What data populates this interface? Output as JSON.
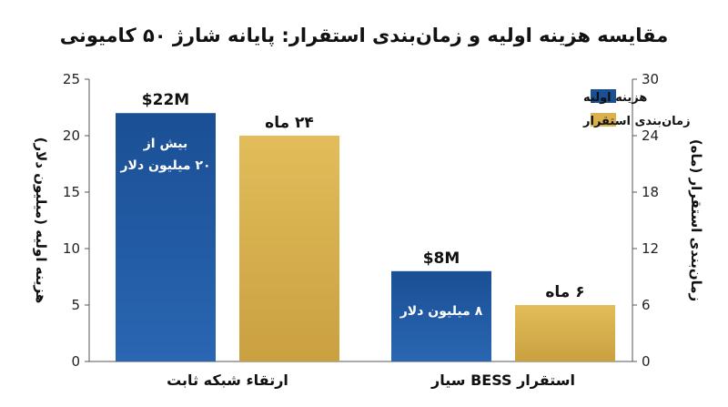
{
  "chart_data": {
    "type": "bar",
    "title": "مقایسه هزینه اولیه و زمان‌بندی استقرار: پایانه شارژ ۵۰ کامیونی",
    "categories": [
      "ارتقاء شبکه ثابت",
      "استقرار BESS سیار"
    ],
    "series": [
      {
        "name": "هزینه اولیه",
        "axis": "left",
        "values": [
          22,
          8
        ],
        "value_labels": [
          "$22M",
          "$8M"
        ],
        "inner_labels": [
          [
            "بیش از",
            "۲۰ میلیون دلار"
          ],
          [
            "۸ میلیون دلار"
          ]
        ]
      },
      {
        "name": "زمان‌بندی استقرار",
        "axis": "right",
        "values": [
          24,
          6
        ],
        "value_labels": [
          "۲۴ ماه",
          "۶ ماه"
        ]
      }
    ],
    "ylabel_left": "هزینه اولیه (میلیون دلار)",
    "ylabel_right": "زمان‌بندی استقرار (ماه)",
    "ylim_left": [
      0,
      25
    ],
    "ylim_right": [
      0,
      30
    ],
    "yticks_left": [
      0,
      5,
      10,
      15,
      20,
      25
    ],
    "yticks_right": [
      0,
      6,
      12,
      18,
      24,
      30
    ],
    "legend_position": "top-right",
    "grid": false,
    "colors": {
      "cost": "#1a4f94",
      "cost_light": "#2a66b3",
      "time": "#d9b24e",
      "time_dark": "#c89b35",
      "axis": "#555555"
    }
  }
}
